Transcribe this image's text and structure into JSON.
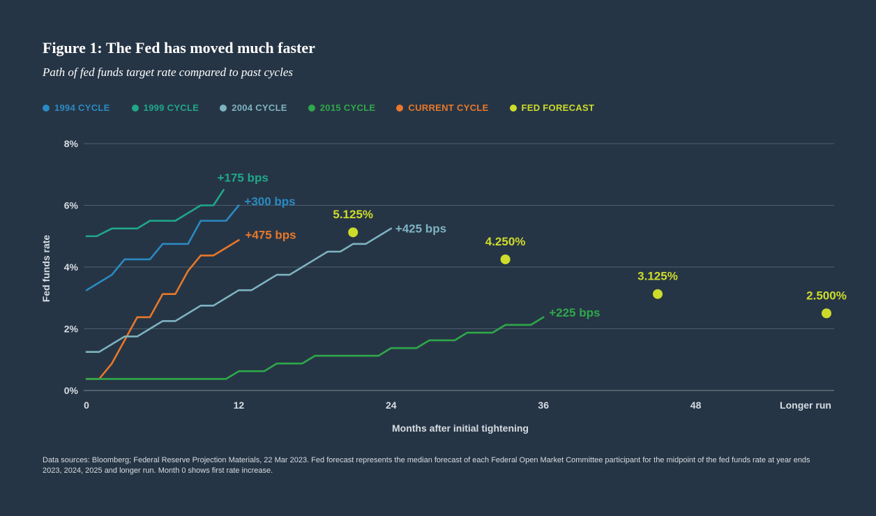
{
  "title": "Figure 1: The Fed has moved much faster",
  "subtitle": "Path of fed funds target rate compared to past cycles",
  "legend": [
    {
      "label": "1994 CYCLE",
      "color": "#2a8ac2"
    },
    {
      "label": "1999 CYCLE",
      "color": "#1fa889"
    },
    {
      "label": "2004 CYCLE",
      "color": "#7eb3c2"
    },
    {
      "label": "2015 CYCLE",
      "color": "#2ea84a"
    },
    {
      "label": "CURRENT CYCLE",
      "color": "#e8782b"
    },
    {
      "label": "FED FORECAST",
      "color": "#cddc2b"
    }
  ],
  "footer": "Data sources: Bloomberg; Federal Reserve Projection Materials, 22 Mar 2023. Fed forecast represents the median forecast of each Federal Open Market Committee participant for the midpoint of the fed funds rate at year ends 2023, 2024, 2025 and longer run. Month 0 shows first rate increase.",
  "chart_data": {
    "type": "line",
    "title": "Figure 1: The Fed has moved much faster",
    "xlabel": "Months after initial tightening",
    "ylabel": "Fed funds rate",
    "ylim": [
      0,
      8
    ],
    "yticks": [
      "0%",
      "2%",
      "4%",
      "6%",
      "8%"
    ],
    "xticks": [
      "0",
      "12",
      "24",
      "36",
      "48",
      "Longer run"
    ],
    "series": [
      {
        "name": "1999 CYCLE",
        "color": "#1fa889",
        "end_label": "+175 bps",
        "points": [
          [
            0,
            5.0
          ],
          [
            0.8,
            5.0
          ],
          [
            2,
            5.25
          ],
          [
            3,
            5.25
          ],
          [
            4,
            5.25
          ],
          [
            5,
            5.5
          ],
          [
            6,
            5.5
          ],
          [
            7,
            5.5
          ],
          [
            8,
            5.75
          ],
          [
            9,
            6.0
          ],
          [
            10,
            6.0
          ],
          [
            10.8,
            6.5
          ]
        ]
      },
      {
        "name": "1994 CYCLE",
        "color": "#2a8ac2",
        "end_label": "+300 bps",
        "points": [
          [
            0,
            3.25
          ],
          [
            1,
            3.5
          ],
          [
            2,
            3.75
          ],
          [
            3,
            4.25
          ],
          [
            4,
            4.25
          ],
          [
            5,
            4.25
          ],
          [
            6,
            4.75
          ],
          [
            7,
            4.75
          ],
          [
            8,
            4.75
          ],
          [
            9,
            5.5
          ],
          [
            10,
            5.5
          ],
          [
            11,
            5.5
          ],
          [
            12,
            6.0
          ]
        ]
      },
      {
        "name": "CURRENT CYCLE",
        "color": "#e8782b",
        "end_label": "+475 bps",
        "points": [
          [
            0,
            0.375
          ],
          [
            1,
            0.375
          ],
          [
            2,
            0.875
          ],
          [
            3,
            1.625
          ],
          [
            4,
            2.375
          ],
          [
            5,
            2.375
          ],
          [
            6,
            3.125
          ],
          [
            7,
            3.125
          ],
          [
            8,
            3.875
          ],
          [
            9,
            4.375
          ],
          [
            10,
            4.375
          ],
          [
            11,
            4.625
          ],
          [
            12,
            4.875
          ]
        ]
      },
      {
        "name": "2004 CYCLE",
        "color": "#7eb3c2",
        "end_label": "+425 bps",
        "points": [
          [
            0,
            1.25
          ],
          [
            1,
            1.25
          ],
          [
            2,
            1.5
          ],
          [
            3,
            1.75
          ],
          [
            4,
            1.75
          ],
          [
            5,
            2.0
          ],
          [
            6,
            2.25
          ],
          [
            7,
            2.25
          ],
          [
            8,
            2.5
          ],
          [
            9,
            2.75
          ],
          [
            10,
            2.75
          ],
          [
            11,
            3.0
          ],
          [
            12,
            3.25
          ],
          [
            13,
            3.25
          ],
          [
            14,
            3.5
          ],
          [
            15,
            3.75
          ],
          [
            16,
            3.75
          ],
          [
            17,
            4.0
          ],
          [
            18,
            4.25
          ],
          [
            19,
            4.5
          ],
          [
            20,
            4.5
          ],
          [
            21,
            4.75
          ],
          [
            22,
            4.75
          ],
          [
            23,
            5.0
          ],
          [
            24,
            5.25
          ]
        ]
      },
      {
        "name": "2015 CYCLE",
        "color": "#2ea84a",
        "end_label": "+225 bps",
        "points": [
          [
            0,
            0.375
          ],
          [
            11,
            0.375
          ],
          [
            12,
            0.625
          ],
          [
            14,
            0.625
          ],
          [
            15,
            0.875
          ],
          [
            17,
            0.875
          ],
          [
            18,
            1.125
          ],
          [
            23,
            1.125
          ],
          [
            24,
            1.375
          ],
          [
            26,
            1.375
          ],
          [
            27,
            1.625
          ],
          [
            29,
            1.625
          ],
          [
            30,
            1.875
          ],
          [
            32,
            1.875
          ],
          [
            33,
            2.125
          ],
          [
            35,
            2.125
          ],
          [
            36,
            2.375
          ]
        ]
      }
    ],
    "forecast": {
      "name": "FED FORECAST",
      "color": "#cddc2b",
      "points": [
        {
          "x": 21,
          "y": 5.125,
          "label": "5.125%"
        },
        {
          "x": 33,
          "y": 4.25,
          "label": "4.250%"
        },
        {
          "x": 45,
          "y": 3.125,
          "label": "3.125%"
        },
        {
          "x": "Longer run",
          "y": 2.5,
          "label": "2.500%"
        }
      ]
    }
  }
}
